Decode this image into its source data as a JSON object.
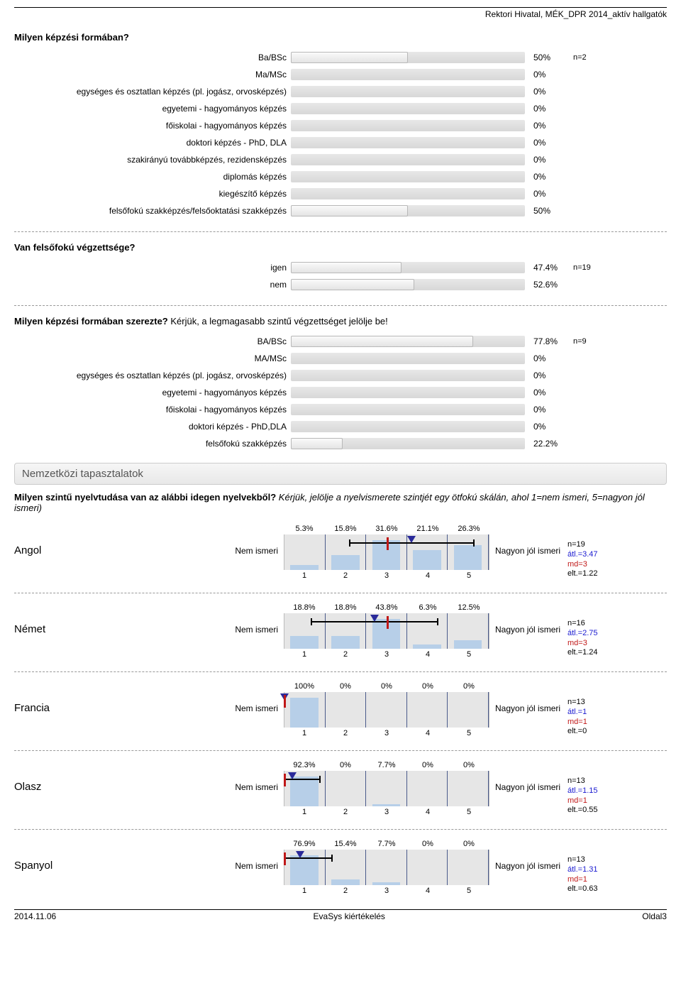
{
  "header": "Rektori Hivatal, MÉK_DPR 2014_aktív hallgatók",
  "q1": {
    "title_html": "<b>Milyen képzési formában?</b>",
    "note": "n=2",
    "rows": [
      {
        "label": "Ba/BSc",
        "pct": 50
      },
      {
        "label": "Ma/MSc",
        "pct": 0
      },
      {
        "label": "egységes és osztatlan képzés (pl. jogász, orvosképzés)",
        "pct": 0
      },
      {
        "label": "egyetemi - hagyományos képzés",
        "pct": 0
      },
      {
        "label": "főiskolai - hagyományos képzés",
        "pct": 0
      },
      {
        "label": "doktori képzés - PhD, DLA",
        "pct": 0
      },
      {
        "label": "szakirányú továbbképzés, rezidensképzés",
        "pct": 0
      },
      {
        "label": "diplomás képzés",
        "pct": 0
      },
      {
        "label": "kiegészítő képzés",
        "pct": 0
      },
      {
        "label": "felsőfokú szakképzés/felsőoktatási szakképzés",
        "pct": 50
      }
    ]
  },
  "q2": {
    "title_html": "<b>Van felsőfokú végzettsége?</b>",
    "note": "n=19",
    "rows": [
      {
        "label": "igen",
        "pct": 47.4
      },
      {
        "label": "nem",
        "pct": 52.6
      }
    ]
  },
  "q3": {
    "title_html": "<b>Milyen képzési formában szerezte?</b> Kérjük, a legmagasabb szintű végzettséget jelölje be!",
    "note": "n=9",
    "rows": [
      {
        "label": "BA/BSc",
        "pct": 77.8
      },
      {
        "label": "MA/MSc",
        "pct": 0
      },
      {
        "label": "egységes és osztatlan képzés (pl. jogász, orvosképzés)",
        "pct": 0
      },
      {
        "label": "egyetemi - hagyományos képzés",
        "pct": 0
      },
      {
        "label": "főiskolai - hagyományos képzés",
        "pct": 0
      },
      {
        "label": "doktori képzés - PhD,DLA",
        "pct": 0
      },
      {
        "label": "felsőfokú szakképzés",
        "pct": 22.2
      }
    ]
  },
  "section": "Nemzetközi tapasztalatok",
  "intro_html": "<b>Milyen szintű nyelvtudása van az alábbi idegen nyelvekből?</b> <i>Kérjük, jelölje a nyelvismerete szintjét egy ötfokú skálán, ahol 1=nem ismeri, 5=nagyon jól ismeri)</i>",
  "scale": {
    "left": "Nem ismeri",
    "right": "Nagyon jól ismeri",
    "ticks": [
      "1",
      "2",
      "3",
      "4",
      "5"
    ]
  },
  "langs": [
    {
      "name": "Angol",
      "pcts": [
        "5.3%",
        "15.8%",
        "31.6%",
        "21.1%",
        "26.3%"
      ],
      "bars": [
        5.3,
        15.8,
        31.6,
        21.1,
        26.3
      ],
      "mean": 3.47,
      "md": 3,
      "ci_lo": 2.25,
      "ci_hi": 4.69,
      "stats": {
        "n": "n=19",
        "atl": "átl.=3.47",
        "md": "md=3",
        "elt": "elt.=1.22"
      }
    },
    {
      "name": "Német",
      "pcts": [
        "18.8%",
        "18.8%",
        "43.8%",
        "6.3%",
        "12.5%"
      ],
      "bars": [
        18.8,
        18.8,
        43.8,
        6.3,
        12.5
      ],
      "mean": 2.75,
      "md": 3,
      "ci_lo": 1.51,
      "ci_hi": 3.99,
      "stats": {
        "n": "n=16",
        "atl": "átl.=2.75",
        "md": "md=3",
        "elt": "elt.=1.24"
      }
    },
    {
      "name": "Francia",
      "pcts": [
        "100%",
        "0%",
        "0%",
        "0%",
        "0%"
      ],
      "bars": [
        100,
        0,
        0,
        0,
        0
      ],
      "mean": 1,
      "md": 1,
      "ci_lo": 1,
      "ci_hi": 1,
      "stats": {
        "n": "n=13",
        "atl": "átl.=1",
        "md": "md=1",
        "elt": "elt.=0"
      }
    },
    {
      "name": "Olasz",
      "pcts": [
        "92.3%",
        "0%",
        "7.7%",
        "0%",
        "0%"
      ],
      "bars": [
        92.3,
        0,
        7.7,
        0,
        0
      ],
      "mean": 1.15,
      "md": 1,
      "ci_lo": 1,
      "ci_hi": 1.7,
      "stats": {
        "n": "n=13",
        "atl": "átl.=1.15",
        "md": "md=1",
        "elt": "elt.=0.55"
      }
    },
    {
      "name": "Spanyol",
      "pcts": [
        "76.9%",
        "15.4%",
        "7.7%",
        "0%",
        "0%"
      ],
      "bars": [
        76.9,
        15.4,
        7.7,
        0,
        0
      ],
      "mean": 1.31,
      "md": 1,
      "ci_lo": 1,
      "ci_hi": 1.94,
      "stats": {
        "n": "n=13",
        "atl": "átl.=1.31",
        "md": "md=1",
        "elt": "elt.=0.63"
      }
    }
  ],
  "footer": {
    "left": "2014.11.06",
    "center": "EvaSys kiértékelés",
    "right": "Oldal3"
  }
}
